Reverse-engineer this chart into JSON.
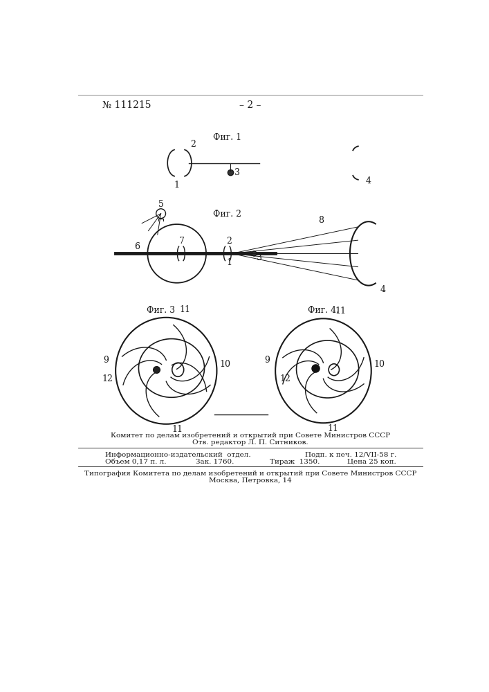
{
  "bg_color": "#ffffff",
  "line_color": "#1a1a1a",
  "patent_number": "№ 111215",
  "page_number": "– 2 –",
  "fig1_label": "Фиг. 1",
  "fig2_label": "Фиг. 2",
  "fig3_label": "Фиг. 3",
  "fig4_label": "Фиг. 4.",
  "footer_line1": "Комитет по делам изобретений и открытий при Совете Министров СССР",
  "footer_line2": "Отв. редактор Л. П. Ситников.",
  "footer_line3a": "Информационно-издательский  отдел.",
  "footer_line3b": "Подп. к печ. 12/VII-58 г.",
  "footer_line4a": "Объем 0,17 п. л.",
  "footer_line4b": "Зак. 1760.",
  "footer_line4c": "Тираж  1350.",
  "footer_line4d": "Цена 25 коп.",
  "footer_line5": "Типография Комитета по делам изобретений и открытий при Совете Министров СССР",
  "footer_line6": "Москва, Петровка, 14"
}
